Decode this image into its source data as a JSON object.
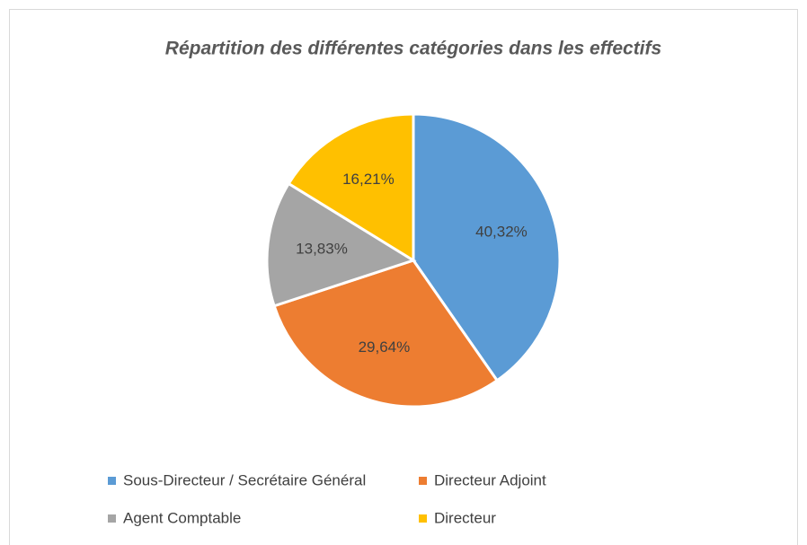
{
  "chart_data": {
    "type": "pie",
    "title": "Répartition des différentes catégories dans les effectifs",
    "categories": [
      "Sous-Directeur / Secrétaire Général",
      "Directeur Adjoint",
      "Agent Comptable",
      "Directeur"
    ],
    "values": [
      40.32,
      29.64,
      13.83,
      16.21
    ],
    "value_labels": [
      "40,32%",
      "29,64%",
      "13,83%",
      "16,21%"
    ],
    "colors": [
      "#5b9bd5",
      "#ed7d31",
      "#a5a5a5",
      "#ffc000"
    ],
    "legend": "bottom"
  }
}
